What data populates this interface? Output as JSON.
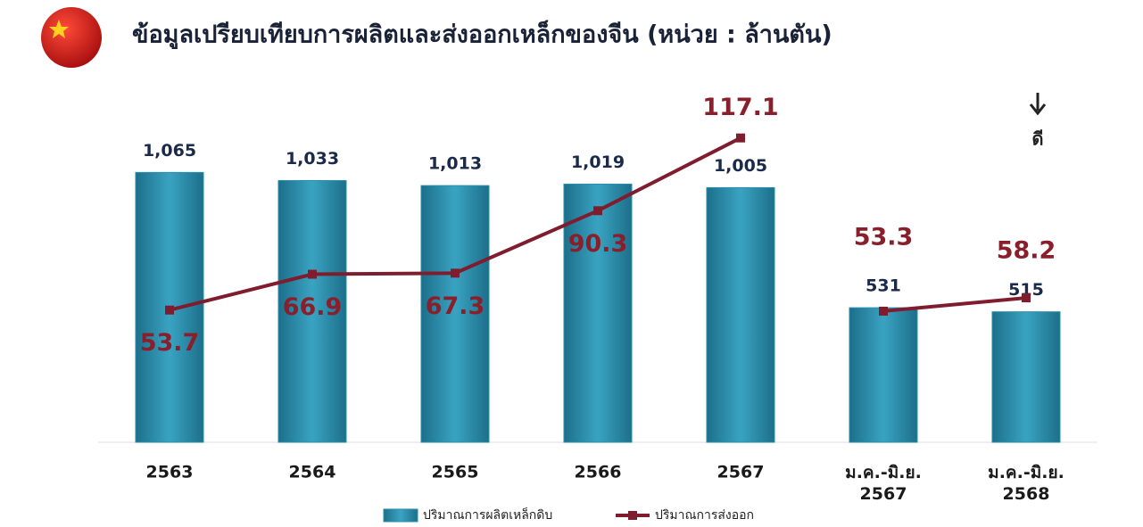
{
  "chart_data": {
    "type": "bar_line",
    "title": "ข้อมูลเปรียบเทียบการผลิตและส่งออกเหล็กของจีน (หน่วย : ล้านตัน)",
    "annotation": "ดี",
    "categories": [
      "2563",
      "2564",
      "2565",
      "2566",
      "2567",
      "ม.ค.-มิ.ย.\n2567",
      "ม.ค.-มิ.ย.\n2568"
    ],
    "series": [
      {
        "name": "ปริมาณการผลิตเหล็กดิบ",
        "type": "bar",
        "color": "#2a8fad",
        "values": [
          1065,
          1033,
          1013,
          1019,
          1005,
          531,
          515
        ],
        "value_labels": [
          "1,065",
          "1,033",
          "1,013",
          "1,019",
          "1,005",
          "531",
          "515"
        ]
      },
      {
        "name": "ปริมาณการส่งออก",
        "type": "line",
        "axis": "y2",
        "color": "#7f1d2e",
        "values": [
          53.7,
          66.9,
          67.3,
          90.3,
          117.1,
          53.3,
          58.2
        ]
      }
    ],
    "ylim": [
      0,
      1200
    ],
    "y2lim": [
      5,
      117
    ],
    "grid": false,
    "legend": "bottom"
  }
}
